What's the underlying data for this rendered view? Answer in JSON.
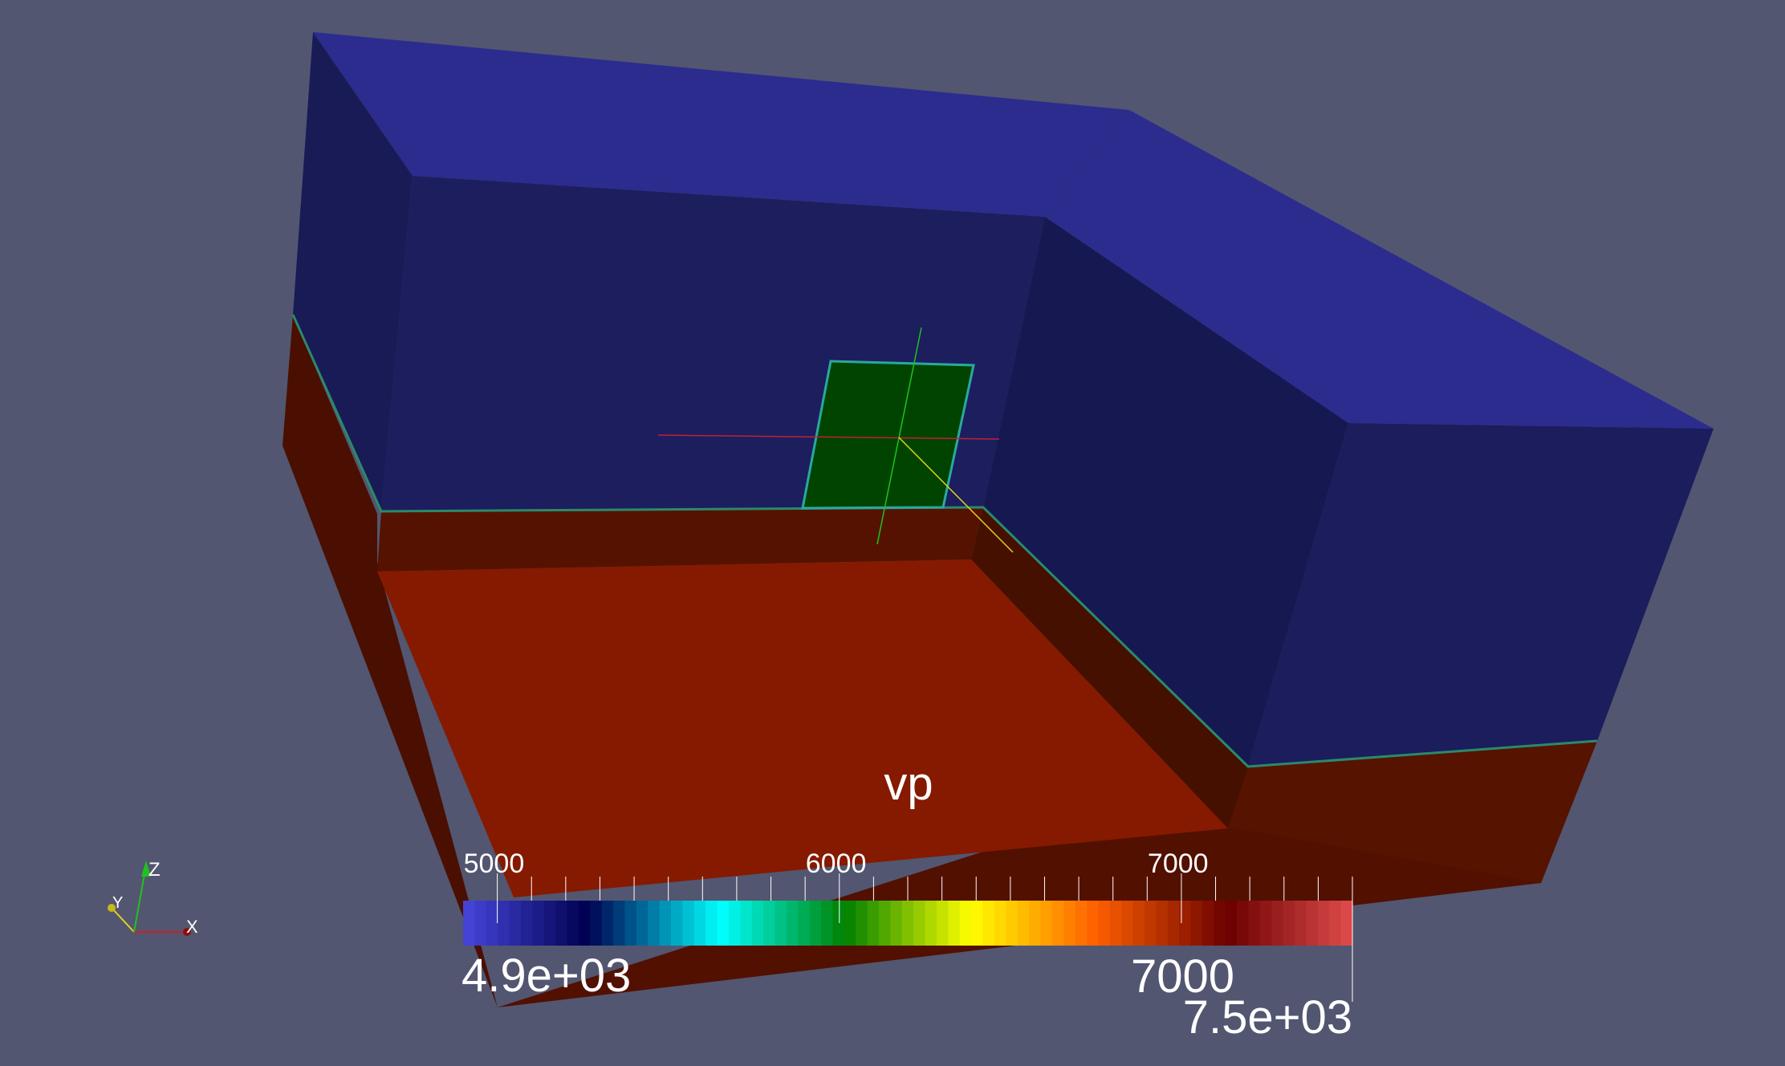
{
  "viewer": {
    "background": "#525670"
  },
  "model": {
    "upper_layer_color": "#2c2c8e",
    "upper_layer_shade": "#1b1d5c",
    "lower_layer_color": "#851a00",
    "lower_layer_shade": "#521000",
    "inclusion_color": "#004400",
    "inclusion_edge": "#2aa8a0"
  },
  "orientation_axes": {
    "x_label": "X",
    "y_label": "Y",
    "z_label": "Z",
    "x_color": "#cc1f1f",
    "y_color": "#e3d020",
    "z_color": "#22c022"
  },
  "colorbar": {
    "title": "vp",
    "range_min": 4900,
    "range_max": 7500,
    "min_label": "4.9e+03",
    "max_label": "7.5e+03",
    "extra_label": "7000",
    "ticks": [
      {
        "value": 5000,
        "label": "5000"
      },
      {
        "value": 6000,
        "label": "6000"
      },
      {
        "value": 7000,
        "label": "7000"
      }
    ],
    "stops": [
      {
        "pos": 0.0,
        "color": "#4646dc"
      },
      {
        "pos": 0.14,
        "color": "#000050"
      },
      {
        "pos": 0.29,
        "color": "#00ffff"
      },
      {
        "pos": 0.43,
        "color": "#008000"
      },
      {
        "pos": 0.57,
        "color": "#ffff00"
      },
      {
        "pos": 0.71,
        "color": "#ff6000"
      },
      {
        "pos": 0.86,
        "color": "#6b0000"
      },
      {
        "pos": 1.0,
        "color": "#e04c4c"
      }
    ],
    "discrete_bands": 77
  }
}
